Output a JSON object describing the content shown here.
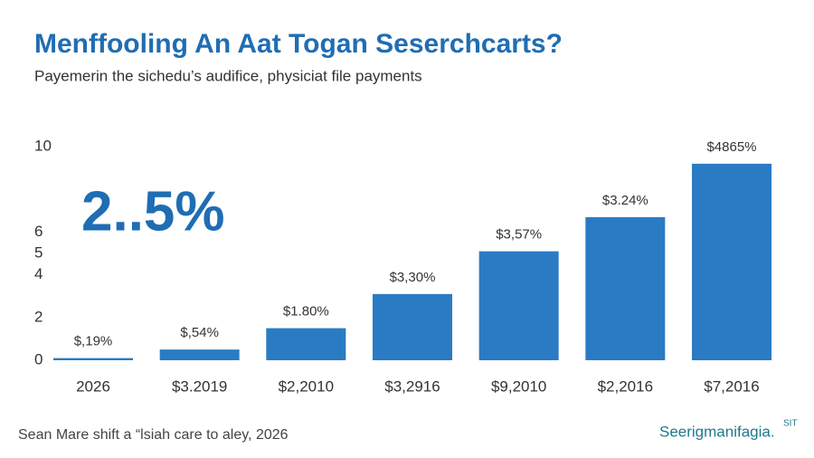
{
  "chart_data": {
    "type": "bar",
    "title": "Menffooling An Aat Togan Seserchcarts?",
    "subtitle": "Payemerin the sichedu’s audifice, physiciat file payments",
    "annotation": "2..5%",
    "source": "Sean Mare shift a “lsiah care to aley, 2026",
    "brand": "Seerigmanifagia.",
    "brand_mark": "SIT",
    "categories": [
      "2026",
      "$3.2019",
      "$2,2010",
      "$3,2916",
      "$9,2010",
      "$2,2016",
      "$7,2016"
    ],
    "values": [
      0.1,
      0.5,
      1.5,
      3.1,
      5.1,
      6.7,
      9.2
    ],
    "bar_labels": [
      "$,19%",
      "$,54%",
      "$1.80%",
      "$3,30%",
      "$3,57%",
      "$3.24%",
      "$4865%"
    ],
    "color": "#2a7bc4",
    "ylim": [
      0,
      10
    ],
    "yticks": [
      0,
      2,
      4,
      5,
      6,
      10
    ],
    "grid": false
  }
}
